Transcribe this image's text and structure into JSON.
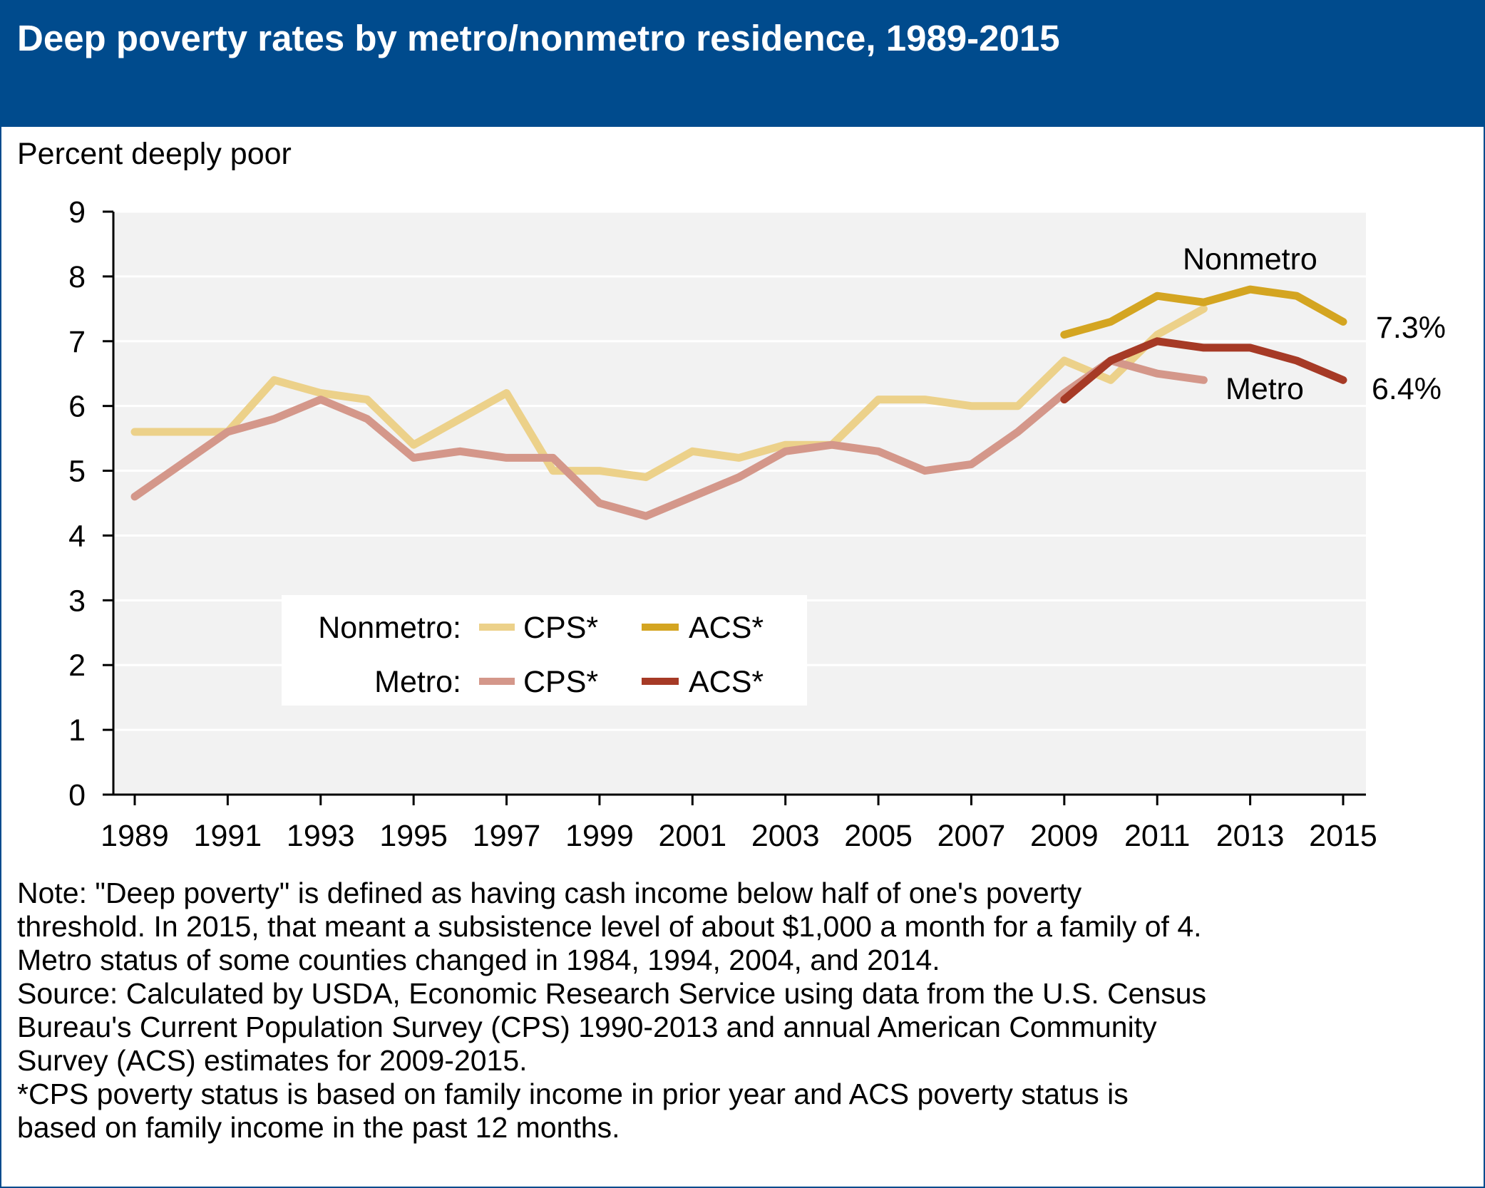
{
  "header": {
    "title": "Deep poverty rates by metro/nonmetro residence, 1989-2015",
    "bg_color": "#004b8d"
  },
  "chart_data": {
    "type": "line",
    "title": "Deep poverty rates by metro/nonmetro residence, 1989-2015",
    "ylabel": "Percent deeply poor",
    "xlabel": "",
    "ylim": [
      0,
      9
    ],
    "xlim": [
      1989,
      2015
    ],
    "yticks": [
      0,
      1,
      2,
      3,
      4,
      5,
      6,
      7,
      8,
      9
    ],
    "xticks": [
      1989,
      1991,
      1993,
      1995,
      1997,
      1999,
      2001,
      2003,
      2005,
      2007,
      2009,
      2011,
      2013,
      2015
    ],
    "grid": "horizontal",
    "plot_bg": "#f2f2f2",
    "series": [
      {
        "key": "nonmetro_cps",
        "color": "#ecd18a",
        "x": [
          1989,
          1990,
          1991,
          1992,
          1993,
          1994,
          1995,
          1996,
          1997,
          1998,
          1999,
          2000,
          2001,
          2002,
          2003,
          2004,
          2005,
          2006,
          2007,
          2008,
          2009,
          2010,
          2011,
          2012
        ],
        "values": [
          5.6,
          5.6,
          5.6,
          6.4,
          6.2,
          6.1,
          5.4,
          5.8,
          6.2,
          5.0,
          5.0,
          4.9,
          5.3,
          5.2,
          5.4,
          5.4,
          6.1,
          6.1,
          6.0,
          6.0,
          6.7,
          6.4,
          7.1,
          7.5
        ]
      },
      {
        "key": "metro_cps",
        "color": "#d4978a",
        "x": [
          1989,
          1990,
          1991,
          1992,
          1993,
          1994,
          1995,
          1996,
          1997,
          1998,
          1999,
          2000,
          2001,
          2002,
          2003,
          2004,
          2005,
          2006,
          2007,
          2008,
          2009,
          2010,
          2011,
          2012
        ],
        "values": [
          4.6,
          5.1,
          5.6,
          5.8,
          6.1,
          5.8,
          5.2,
          5.3,
          5.2,
          5.2,
          4.5,
          4.3,
          4.6,
          4.9,
          5.3,
          5.4,
          5.3,
          5.0,
          5.1,
          5.6,
          6.2,
          6.7,
          6.5,
          6.4
        ]
      },
      {
        "key": "nonmetro_acs",
        "color": "#d4a521",
        "x": [
          2009,
          2010,
          2011,
          2012,
          2013,
          2014,
          2015
        ],
        "values": [
          7.1,
          7.3,
          7.7,
          7.6,
          7.8,
          7.7,
          7.3
        ]
      },
      {
        "key": "metro_acs",
        "color": "#a63a26",
        "x": [
          2009,
          2010,
          2011,
          2012,
          2013,
          2014,
          2015
        ],
        "values": [
          6.1,
          6.7,
          7.0,
          6.9,
          6.9,
          6.7,
          6.4
        ]
      }
    ],
    "annotations": {
      "nonmetro_label": "Nonmetro",
      "metro_label": "Metro",
      "nonmetro_end_value": "7.3%",
      "metro_end_value": "6.4%"
    },
    "legend": {
      "position": "lower-middle",
      "row_nonmetro_label": "Nonmetro:",
      "row_metro_label": "Metro:",
      "cps_label": "CPS*",
      "acs_label": "ACS*"
    }
  },
  "notes": {
    "line1": "Note: \"Deep poverty\" is defined as having cash income below half of one's poverty",
    "line2": "threshold. In 2015, that meant a subsistence level of about $1,000 a month for a family of 4.",
    "line3": "Metro status of some counties changed in 1984, 1994, 2004, and 2014.",
    "line4": "Source: Calculated by USDA, Economic Research Service using data from the U.S. Census",
    "line5": "Bureau's Current Population Survey (CPS) 1990-2013 and annual American Community",
    "line6": "Survey (ACS) estimates for 2009-2015.",
    "line7": "*CPS poverty status is based on family income in prior year and ACS poverty status is",
    "line8": "based on family income in the past 12 months."
  }
}
